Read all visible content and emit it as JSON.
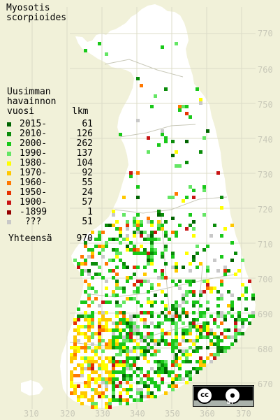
{
  "title": {
    "line1": "Myosotis",
    "line2": "scorpioides"
  },
  "legend": {
    "heading": [
      "Uusimman",
      "havainnon",
      "vuosi"
    ],
    "count_heading": "lkm",
    "items": [
      {
        "label": "2015-",
        "count": "61",
        "color": "#006400"
      },
      {
        "label": "2010-",
        "count": "126",
        "color": "#0a8c0a"
      },
      {
        "label": "2000-",
        "count": "262",
        "color": "#19c819"
      },
      {
        "label": "1990-",
        "count": "137",
        "color": "#64e664"
      },
      {
        "label": "1980-",
        "count": "104",
        "color": "#ffff00"
      },
      {
        "label": "1970-",
        "count": "92",
        "color": "#ffc800"
      },
      {
        "label": "1960-",
        "count": "55",
        "color": "#ff7800"
      },
      {
        "label": "1950-",
        "count": "24",
        "color": "#e63200"
      },
      {
        "label": "1900-",
        "count": "57",
        "color": "#c81414"
      },
      {
        "label": "-1899",
        "count": "1",
        "color": "#960000"
      },
      {
        "label": " ???",
        "count": "51",
        "color": "#c8c8c8"
      }
    ],
    "total_label": "Yhteensä",
    "total_count": "970"
  },
  "grid_y_labels": [
    "770",
    "760",
    "750",
    "740",
    "730",
    "720",
    "710",
    "700",
    "690",
    "680",
    "670"
  ],
  "grid_x_labels": [
    "310",
    "320",
    "330",
    "340",
    "350",
    "360",
    "370"
  ],
  "license": {
    "badge": "cc",
    "by_text": "BY"
  },
  "colors": {
    "sea": "#f1f1d9",
    "land": "#ffffff",
    "grid": "#c8c8b8",
    "boundary": "#c0c0b0"
  }
}
